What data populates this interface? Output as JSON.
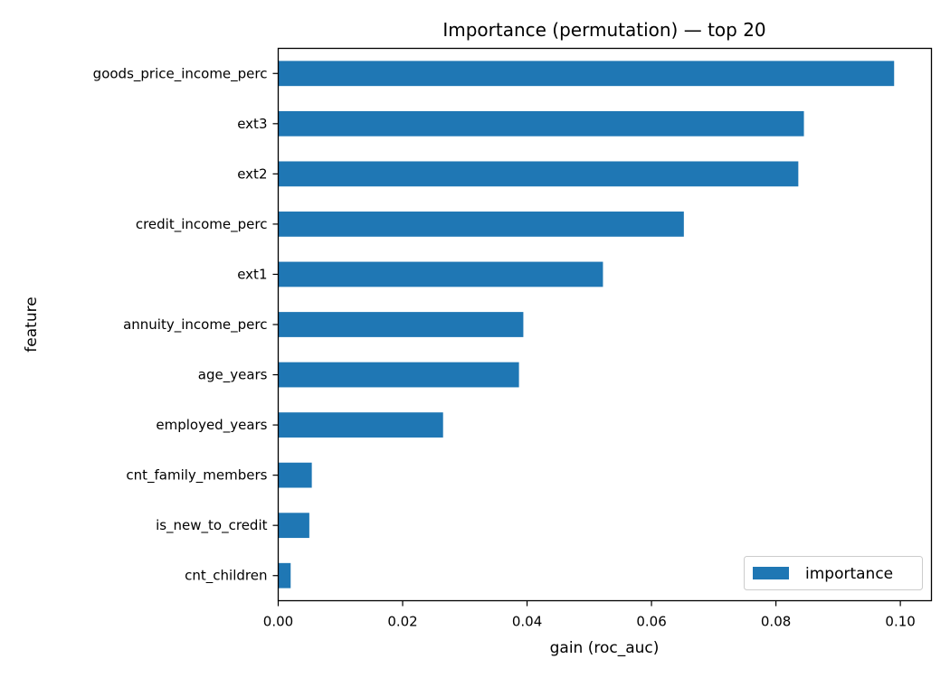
{
  "chart_data": {
    "type": "bar",
    "orientation": "horizontal",
    "title": "Importance (permutation) — top 20",
    "xlabel": "gain (roc_auc)",
    "ylabel": "feature",
    "xlim": [
      0.0,
      0.105
    ],
    "xticks": [
      0.0,
      0.02,
      0.04,
      0.06,
      0.08,
      0.1
    ],
    "xtick_labels": [
      "0.00",
      "0.02",
      "0.04",
      "0.06",
      "0.08",
      "0.10"
    ],
    "grid": false,
    "legend_position": "bottom-right",
    "color": "#1f77b4",
    "categories": [
      "goods_price_income_perc",
      "ext3",
      "ext2",
      "credit_income_perc",
      "ext1",
      "annuity_income_perc",
      "age_years",
      "employed_years",
      "cnt_family_members",
      "is_new_to_credit",
      "cnt_children"
    ],
    "series": [
      {
        "name": "importance",
        "values": [
          0.099,
          0.0845,
          0.0836,
          0.0652,
          0.0522,
          0.0394,
          0.0387,
          0.0265,
          0.0054,
          0.005,
          0.002
        ]
      }
    ]
  }
}
